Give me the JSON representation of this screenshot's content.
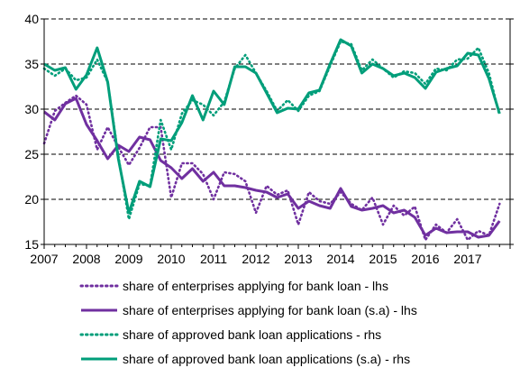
{
  "chart_data": {
    "type": "line",
    "title": "",
    "left_axis": {
      "ylim": [
        15,
        40
      ],
      "ticks": [
        15,
        20,
        25,
        30,
        35,
        40
      ],
      "tick_labels": [
        "15",
        "20",
        "25",
        "30",
        "35",
        "40"
      ]
    },
    "right_axis": {
      "ticks": [
        15,
        20,
        25,
        30,
        35,
        40
      ],
      "tick_labels": []
    },
    "x_axis": {
      "range": [
        2007,
        2018
      ],
      "tick_labels": [
        "2007",
        "2008",
        "2009",
        "2010",
        "2011",
        "2012",
        "2013",
        "2014",
        "2015",
        "2016",
        "2017"
      ]
    },
    "grid": "horizontal dashed",
    "colors": {
      "enterprises": "#7030A0",
      "approved": "#009E7A"
    },
    "series": [
      {
        "name": "share of enterprises applying for bank loan - lhs",
        "axis": "left",
        "style": "dotted",
        "color": "#7030A0",
        "x": [
          2007.0,
          2007.25,
          2007.5,
          2007.75,
          2008.0,
          2008.25,
          2008.5,
          2008.75,
          2009.0,
          2009.25,
          2009.5,
          2009.75,
          2010.0,
          2010.25,
          2010.5,
          2010.75,
          2011.0,
          2011.25,
          2011.5,
          2011.75,
          2012.0,
          2012.25,
          2012.5,
          2012.75,
          2013.0,
          2013.25,
          2013.5,
          2013.75,
          2014.0,
          2014.25,
          2014.5,
          2014.75,
          2015.0,
          2015.25,
          2015.5,
          2015.75,
          2016.0,
          2016.25,
          2016.5,
          2016.75,
          2017.0,
          2017.25,
          2017.5,
          2017.75
        ],
        "y": [
          26.2,
          29.8,
          30.7,
          31.5,
          30.5,
          25.5,
          28.0,
          25.8,
          23.8,
          25.7,
          28.0,
          28.0,
          20.2,
          24.0,
          24.0,
          22.8,
          20.0,
          23.0,
          22.8,
          22.0,
          18.5,
          21.5,
          20.5,
          21.0,
          17.2,
          20.8,
          19.8,
          19.5,
          20.8,
          19.5,
          18.8,
          20.2,
          17.2,
          19.3,
          18.2,
          19.2,
          15.5,
          17.2,
          16.3,
          17.8,
          15.5,
          16.5,
          16.0,
          19.5
        ]
      },
      {
        "name": "share of enterprises applying for bank loan (s.a) - lhs",
        "axis": "left",
        "style": "solid",
        "color": "#7030A0",
        "x": [
          2007.0,
          2007.25,
          2007.5,
          2007.75,
          2008.0,
          2008.25,
          2008.5,
          2008.75,
          2009.0,
          2009.25,
          2009.5,
          2009.75,
          2010.0,
          2010.25,
          2010.5,
          2010.75,
          2011.0,
          2011.25,
          2011.5,
          2011.75,
          2012.0,
          2012.25,
          2012.5,
          2012.75,
          2013.0,
          2013.25,
          2013.5,
          2013.75,
          2014.0,
          2014.25,
          2014.5,
          2014.75,
          2015.0,
          2015.25,
          2015.5,
          2015.75,
          2016.0,
          2016.25,
          2016.5,
          2016.75,
          2017.0,
          2017.25,
          2017.5,
          2017.75
        ],
        "y": [
          29.7,
          28.8,
          30.6,
          31.2,
          28.3,
          26.5,
          24.5,
          26.0,
          25.3,
          26.9,
          26.6,
          24.3,
          23.5,
          22.3,
          23.4,
          22.0,
          23.0,
          21.5,
          21.5,
          21.3,
          21.0,
          20.8,
          20.2,
          20.6,
          19.0,
          19.8,
          19.3,
          19.0,
          21.2,
          19.2,
          18.8,
          19.0,
          19.3,
          18.5,
          18.8,
          18.0,
          16.0,
          16.8,
          16.3,
          16.4,
          16.4,
          15.8,
          16.0,
          17.6
        ]
      },
      {
        "name": "share of approved bank loan applications - rhs",
        "axis": "right",
        "style": "dotted",
        "color": "#009E7A",
        "x": [
          2007.0,
          2007.25,
          2007.5,
          2007.75,
          2008.0,
          2008.25,
          2008.5,
          2008.75,
          2009.0,
          2009.25,
          2009.5,
          2009.75,
          2010.0,
          2010.25,
          2010.5,
          2010.75,
          2011.0,
          2011.25,
          2011.5,
          2011.75,
          2012.0,
          2012.25,
          2012.5,
          2012.75,
          2013.0,
          2013.25,
          2013.5,
          2013.75,
          2014.0,
          2014.25,
          2014.5,
          2014.75,
          2015.0,
          2015.25,
          2015.5,
          2015.75,
          2016.0,
          2016.25,
          2016.5,
          2016.75,
          2017.0,
          2017.25,
          2017.5,
          2017.75
        ],
        "y": [
          34.5,
          33.7,
          34.5,
          33.2,
          33.5,
          35.5,
          33.0,
          24.8,
          17.8,
          21.7,
          21.5,
          28.8,
          25.5,
          29.5,
          31.0,
          30.5,
          29.3,
          30.8,
          34.5,
          36.0,
          34.0,
          32.0,
          29.8,
          31.0,
          29.8,
          31.5,
          32.0,
          34.8,
          37.5,
          37.2,
          34.3,
          35.5,
          34.5,
          33.5,
          34.2,
          34.0,
          32.8,
          34.5,
          34.3,
          35.5,
          35.6,
          36.8,
          34.0,
          29.3
        ]
      },
      {
        "name": "share of approved bank loan applications (s.a) - rhs",
        "axis": "right",
        "style": "solid",
        "color": "#009E7A",
        "x": [
          2007.0,
          2007.25,
          2007.5,
          2007.75,
          2008.0,
          2008.25,
          2008.5,
          2008.75,
          2009.0,
          2009.25,
          2009.5,
          2009.75,
          2010.0,
          2010.25,
          2010.5,
          2010.75,
          2011.0,
          2011.25,
          2011.5,
          2011.75,
          2012.0,
          2012.25,
          2012.5,
          2012.75,
          2013.0,
          2013.25,
          2013.5,
          2013.75,
          2014.0,
          2014.25,
          2014.5,
          2014.75,
          2015.0,
          2015.25,
          2015.5,
          2015.75,
          2016.0,
          2016.25,
          2016.5,
          2016.75,
          2017.0,
          2017.25,
          2017.5,
          2017.75
        ],
        "y": [
          35.0,
          34.3,
          34.6,
          32.2,
          33.8,
          36.8,
          33.0,
          24.5,
          18.5,
          22.0,
          21.4,
          26.7,
          26.5,
          28.5,
          31.5,
          28.8,
          32.0,
          30.5,
          34.7,
          34.7,
          34.0,
          31.8,
          29.6,
          30.1,
          30.0,
          31.8,
          32.1,
          35.0,
          37.7,
          37.0,
          34.0,
          35.0,
          34.5,
          33.7,
          34.0,
          33.5,
          32.3,
          34.1,
          34.5,
          34.8,
          36.2,
          36.0,
          33.4,
          29.5
        ]
      }
    ]
  }
}
